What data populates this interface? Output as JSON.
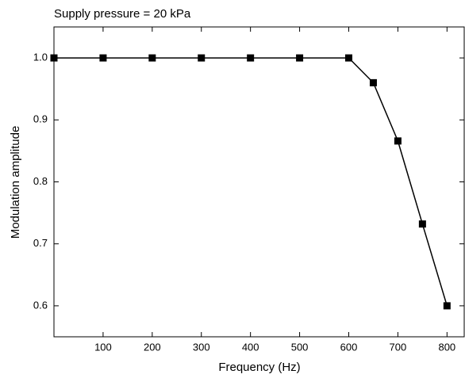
{
  "chart_data": {
    "type": "line",
    "title": "Supply pressure = 20 kPa",
    "x_label": "Frequency (Hz)",
    "y_label": "Modulation amplitude",
    "x": [
      0,
      100,
      200,
      300,
      400,
      500,
      600,
      650,
      700,
      750,
      800
    ],
    "series": [
      {
        "color": "#000000",
        "values": [
          1.0,
          1.0,
          1.0,
          1.0,
          1.0,
          1.0,
          1.0,
          0.96,
          0.866,
          0.732,
          0.6
        ]
      }
    ],
    "xlim": [
      0,
      835
    ],
    "xticks": [
      100,
      200,
      300,
      400,
      500,
      600,
      700,
      800
    ],
    "ylim": [
      0.55,
      1.05
    ],
    "yticks": [
      0.6,
      0.7,
      0.8,
      0.9,
      {
        "value": 1.0,
        "label": "1.0"
      }
    ]
  }
}
